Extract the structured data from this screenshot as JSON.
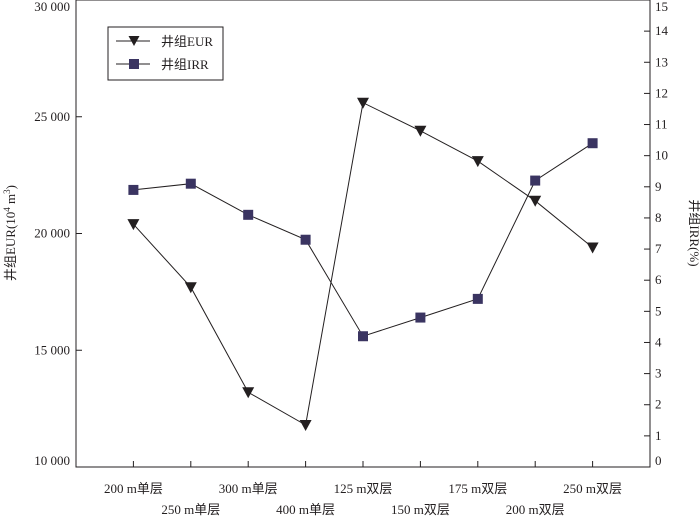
{
  "colors": {
    "line": "#231f20",
    "eur_marker": "#231f20",
    "irr_marker": "#3a3461"
  },
  "chart_data": {
    "type": "line",
    "categories": [
      "200 m单层",
      "250 m单层",
      "300 m单层",
      "400 m单层",
      "125 m双层",
      "150 m双层",
      "175 m双层",
      "200 m双层",
      "250 m双层"
    ],
    "series": [
      {
        "name": "井组EUR",
        "axis": "left",
        "marker": "triangle-down",
        "values": [
          20400,
          17700,
          13200,
          11800,
          25600,
          24400,
          23100,
          21400,
          19400
        ]
      },
      {
        "name": "井组IRR",
        "axis": "right",
        "marker": "square",
        "values": [
          8.9,
          9.1,
          8.1,
          7.3,
          4.2,
          4.8,
          5.4,
          9.2,
          10.4
        ]
      }
    ],
    "y_left": {
      "label_prefix": "井组EUR(10",
      "label_sup": "4",
      "label_mid": " m",
      "label_sup2": "3",
      "label_suffix": ")",
      "range": [
        10000,
        30000
      ],
      "ticks": [
        10000,
        15000,
        20000,
        25000,
        30000
      ],
      "tick_labels": [
        "10 000",
        "15 000",
        "20 000",
        "25 000",
        "30 000"
      ]
    },
    "y_right": {
      "label": "井组IRR(%)",
      "range": [
        0,
        15
      ],
      "ticks": [
        0,
        1,
        2,
        3,
        4,
        5,
        6,
        7,
        8,
        9,
        10,
        11,
        12,
        13,
        14,
        15
      ],
      "tick_labels": [
        "0",
        "1",
        "2",
        "3",
        "4",
        "5",
        "6",
        "7",
        "8",
        "9",
        "10",
        "11",
        "12",
        "13",
        "14",
        "15"
      ]
    },
    "legend": {
      "placement": "top-left",
      "entries": [
        "井组EUR",
        "井组IRR"
      ]
    },
    "grid": false
  }
}
